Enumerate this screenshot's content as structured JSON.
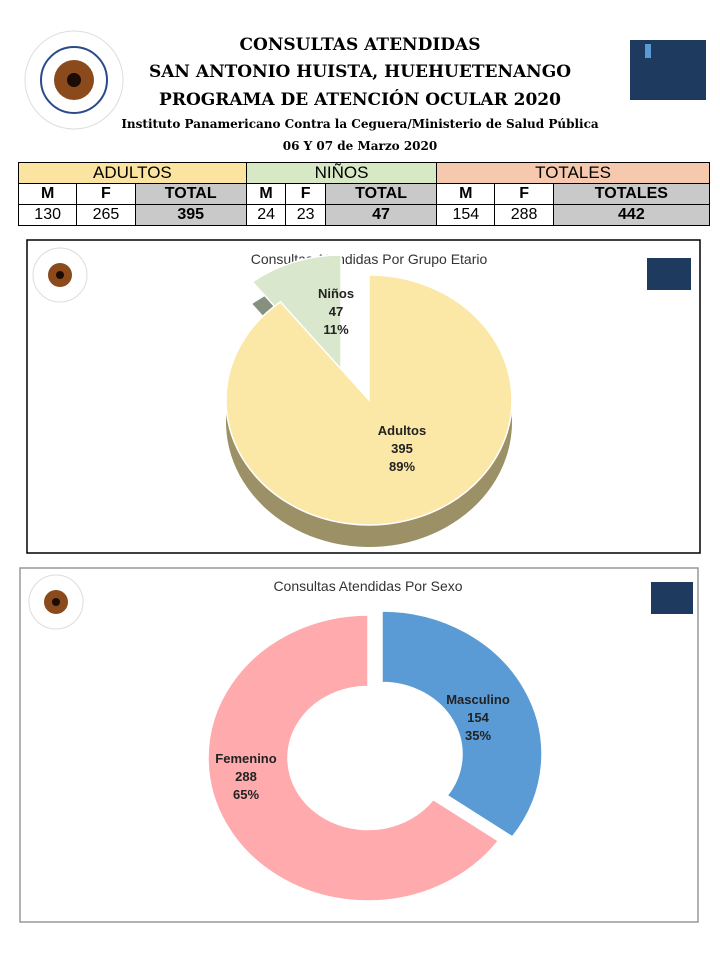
{
  "header": {
    "title_lines": [
      "CONSULTAS ATENDIDAS",
      "SAN ANTONIO HUISTA, HUEHUETENANGO",
      "PROGRAMA DE ATENCIÓN OCULAR 2020"
    ],
    "subtitle": "Instituto Panamericano Contra la Ceguera/Ministerio de Salud Pública",
    "date": "06 Y 07 de Marzo 2020"
  },
  "table": {
    "groups": [
      "ADULTOS",
      "NIÑOS",
      "TOTALES"
    ],
    "group_colors": [
      "#fbe3a0",
      "#d6e8c4",
      "#f6c9ae"
    ],
    "columns": [
      "M",
      "F",
      "TOTAL",
      "M",
      "F",
      "TOTAL",
      "M",
      "F",
      "TOTALES"
    ],
    "row": [
      "130",
      "265",
      "395",
      "24",
      "23",
      "47",
      "154",
      "288",
      "442"
    ]
  },
  "chart_data": [
    {
      "type": "pie",
      "title": "Consultas Atendidas Por Grupo Etario",
      "categories": [
        "Niños",
        "Adultos"
      ],
      "values": [
        47,
        395
      ],
      "percent_labels": [
        "11%",
        "89%"
      ],
      "colors": [
        "#d9e8cc",
        "#fbe8a6"
      ]
    },
    {
      "type": "doughnut",
      "title": "Consultas Atendidas Por Sexo",
      "categories": [
        "Masculino",
        "Femenino"
      ],
      "values": [
        154,
        288
      ],
      "percent_labels": [
        "35%",
        "65%"
      ],
      "colors": [
        "#5b9bd5",
        "#ffaaad"
      ]
    }
  ]
}
